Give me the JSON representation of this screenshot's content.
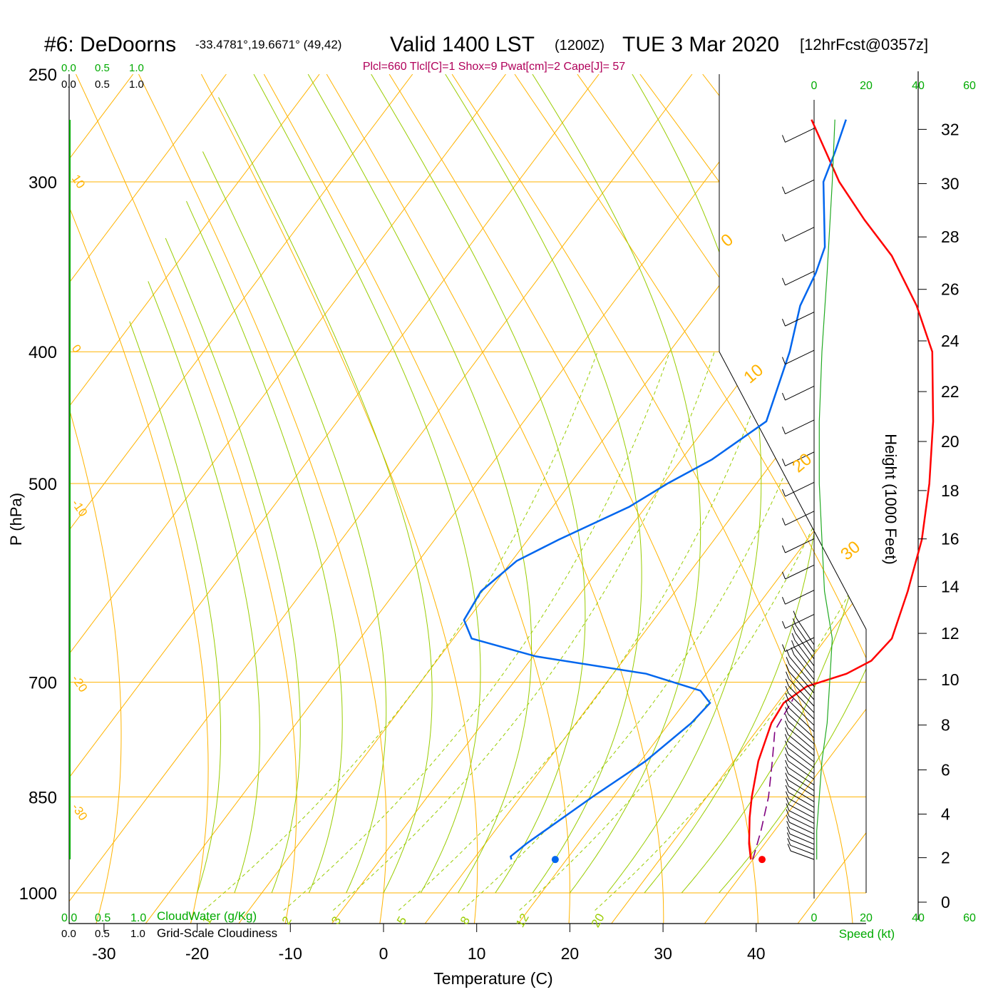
{
  "header": {
    "station": "#6: DeDoorns",
    "coords": "-33.4781°,19.6671° (49,42)",
    "valid": "Valid 1400 LST",
    "zulu": "(1200Z)",
    "date": "TUE 3 Mar 2020",
    "forecast": "[12hrFcst@0357z]",
    "indices": "Plcl=660 Tlcl[C]=1 Shox=9 Pwat[cm]=2 Cape[J]= 57"
  },
  "colors": {
    "temperature": "#ff0000",
    "dewpoint": "#0066ee",
    "parcel": "#800080",
    "isotherm": "#ffb300",
    "dry_adiabat": "#ffb300",
    "moist_adiabat": "#99cc00",
    "mixing_ratio": "#99cc00",
    "green_text": "#00aa00",
    "indices_text": "#b0005a",
    "wind_barb": "#000000",
    "speed_profile": "#22aa22"
  },
  "scale_labels": {
    "cloud_top_green": [
      "0.0",
      "0.5",
      "1.0"
    ],
    "cloud_top_black": [
      "0.0",
      "0.5",
      "1.0"
    ],
    "cloud_bottom_green": [
      "0.0",
      "0.5",
      "1.0"
    ],
    "cloud_bottom_black": [
      "0.0",
      "0.5",
      "1.0"
    ],
    "cloudwater_label": "CloudWater (g/Kg)",
    "cloudiness_label": "Grid-Scale Cloudiness",
    "speed_top": [
      "0",
      "20",
      "40",
      "60"
    ],
    "speed_bottom": [
      "0",
      "20",
      "40",
      "60"
    ],
    "speed_label": "Speed (kt)"
  },
  "chart_data": {
    "type": "skew-t",
    "xlabel": "Temperature (C)",
    "ylabel": "P (hPa)",
    "right_axis_label": "Height (1000 Feet)",
    "xlim": [
      -33,
      46
    ],
    "ylim": [
      1000,
      250
    ],
    "x_ticks": [
      -30,
      -20,
      -10,
      0,
      10,
      20,
      30,
      40
    ],
    "p_ticks": [
      250,
      300,
      400,
      500,
      700,
      850,
      1000
    ],
    "height_ticks": [
      0,
      2,
      4,
      6,
      8,
      10,
      12,
      14,
      16,
      18,
      20,
      22,
      24,
      26,
      28,
      30,
      32
    ],
    "isotherm_labels": [
      {
        "text": "10",
        "t": 10
      },
      {
        "text": "0",
        "t": 0
      },
      {
        "text": "-10",
        "t": -10
      },
      {
        "text": "-20",
        "t": -20
      },
      {
        "text": "-30",
        "t": -30
      },
      {
        "text": "0",
        "t": 0
      },
      {
        "text": "10",
        "t": 10
      },
      {
        "text": "20",
        "t": 20
      },
      {
        "text": "30",
        "t": 30
      }
    ],
    "mixing_ratio_labels": [
      "1",
      "2",
      "3",
      "5",
      "8",
      "12",
      "20"
    ],
    "series": [
      {
        "name": "temperature",
        "points": [
          [
            945,
            34.8
          ],
          [
            920,
            32.5
          ],
          [
            880,
            29.2
          ],
          [
            850,
            26.9
          ],
          [
            800,
            23.4
          ],
          [
            750,
            20.6
          ],
          [
            725,
            19.8
          ],
          [
            705,
            20.6
          ],
          [
            690,
            23.6
          ],
          [
            675,
            25.0
          ],
          [
            650,
            25.1
          ],
          [
            600,
            22.6
          ],
          [
            550,
            19.9
          ],
          [
            500,
            16.5
          ],
          [
            450,
            12.7
          ],
          [
            400,
            8.4
          ],
          [
            370,
            4.2
          ],
          [
            340,
            -1.0
          ],
          [
            320,
            -5.6
          ],
          [
            300,
            -10.0
          ],
          [
            270,
            -15.5
          ]
        ]
      },
      {
        "name": "dewpoint",
        "points": [
          [
            945,
            9.1
          ],
          [
            940,
            8.6
          ],
          [
            920,
            8.6
          ],
          [
            850,
            9.8
          ],
          [
            800,
            11.3
          ],
          [
            750,
            12.0
          ],
          [
            725,
            11.9
          ],
          [
            710,
            9.6
          ],
          [
            690,
            2.1
          ],
          [
            670,
            -11.4
          ],
          [
            650,
            -20.0
          ],
          [
            630,
            -22.5
          ],
          [
            600,
            -23.2
          ],
          [
            570,
            -21.9
          ],
          [
            550,
            -19.1
          ],
          [
            520,
            -14.0
          ],
          [
            500,
            -11.6
          ],
          [
            480,
            -8.5
          ],
          [
            450,
            -5.2
          ],
          [
            400,
            -6.9
          ],
          [
            370,
            -8.3
          ],
          [
            350,
            -8.3
          ],
          [
            335,
            -8.6
          ],
          [
            300,
            -11.7
          ],
          [
            285,
            -11.7
          ],
          [
            270,
            -11.8
          ]
        ]
      },
      {
        "name": "parcel",
        "points": [
          [
            945,
            35.0
          ],
          [
            900,
            32.1
          ],
          [
            850,
            28.7
          ],
          [
            800,
            24.9
          ],
          [
            760,
            21.8
          ],
          [
            720,
            20.4
          ]
        ]
      }
    ],
    "surface_temperature": 36.0,
    "surface_dewpoint": 13.8,
    "surface_pressure": 945,
    "wind_speed_kt": [
      [
        945,
        1
      ],
      [
        900,
        1
      ],
      [
        850,
        2
      ],
      [
        800,
        3
      ],
      [
        750,
        5
      ],
      [
        700,
        6
      ],
      [
        650,
        7
      ],
      [
        600,
        4
      ],
      [
        550,
        3
      ],
      [
        500,
        2
      ],
      [
        450,
        2
      ],
      [
        400,
        3
      ],
      [
        350,
        5
      ],
      [
        300,
        7
      ],
      [
        270,
        8
      ]
    ]
  }
}
